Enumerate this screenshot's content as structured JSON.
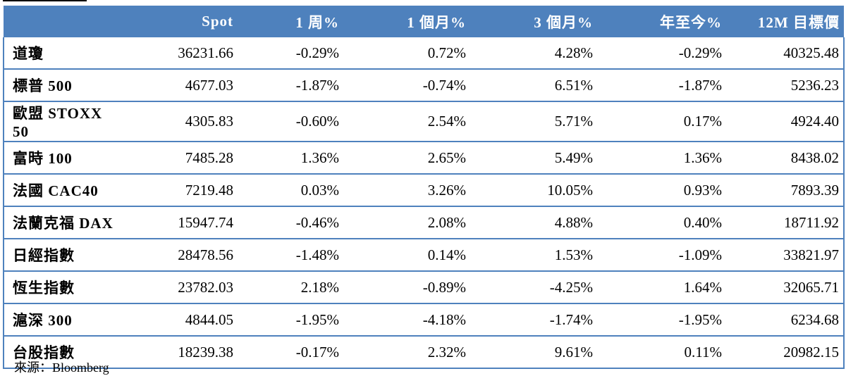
{
  "table": {
    "headers": [
      "",
      "Spot",
      "1 周%",
      "1 個月%",
      "3 個月%",
      "年至今%",
      "12M 目標價"
    ],
    "rows": [
      {
        "name": "道瓊",
        "spot": "36231.66",
        "w1": "-0.29%",
        "m1": "0.72%",
        "m3": "4.28%",
        "ytd": "-0.29%",
        "target": "40325.48"
      },
      {
        "name": "標普 500",
        "spot": "4677.03",
        "w1": "-1.87%",
        "m1": "-0.74%",
        "m3": "6.51%",
        "ytd": "-1.87%",
        "target": "5236.23"
      },
      {
        "name": "歐盟 STOXX 50",
        "spot": "4305.83",
        "w1": "-0.60%",
        "m1": "2.54%",
        "m3": "5.71%",
        "ytd": "0.17%",
        "target": "4924.40"
      },
      {
        "name": "富時 100",
        "spot": "7485.28",
        "w1": "1.36%",
        "m1": "2.65%",
        "m3": "5.49%",
        "ytd": "1.36%",
        "target": "8438.02"
      },
      {
        "name": "法國 CAC40",
        "spot": "7219.48",
        "w1": "0.03%",
        "m1": "3.26%",
        "m3": "10.05%",
        "ytd": "0.93%",
        "target": "7893.39"
      },
      {
        "name": "法蘭克福 DAX",
        "spot": "15947.74",
        "w1": "-0.46%",
        "m1": "2.08%",
        "m3": "4.88%",
        "ytd": "0.40%",
        "target": "18711.92"
      },
      {
        "name": "日經指數",
        "spot": "28478.56",
        "w1": "-1.48%",
        "m1": "0.14%",
        "m3": "1.53%",
        "ytd": "-1.09%",
        "target": "33821.97"
      },
      {
        "name": "恆生指數",
        "spot": "23782.03",
        "w1": "2.18%",
        "m1": "-0.89%",
        "m3": "-4.25%",
        "ytd": "1.64%",
        "target": "32065.71"
      },
      {
        "name": "滬深 300",
        "spot": "4844.05",
        "w1": "-1.95%",
        "m1": "-4.18%",
        "m3": "-1.74%",
        "ytd": "-1.95%",
        "target": "6234.68"
      },
      {
        "name": "台股指數",
        "spot": "18239.38",
        "w1": "-0.17%",
        "m1": "2.32%",
        "m3": "9.61%",
        "ytd": "0.11%",
        "target": "20982.15"
      }
    ]
  },
  "source": "來源：Bloomberg",
  "colors": {
    "header_bg": "#4e81bd",
    "header_text": "#ffffff",
    "border": "#4e81bd"
  }
}
